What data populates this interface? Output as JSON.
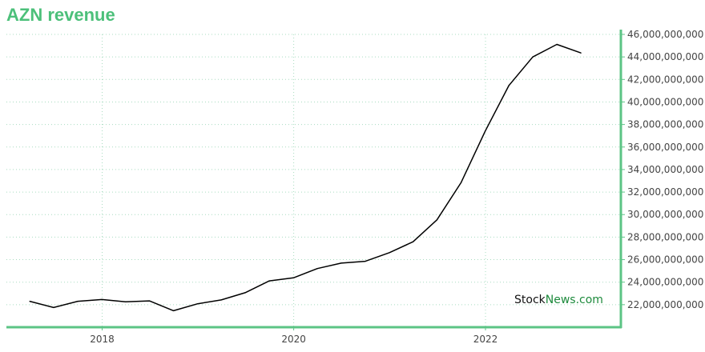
{
  "chart_data": {
    "type": "line",
    "title": "AZN revenue",
    "xlabel": "",
    "ylabel": "",
    "x": [
      "2017-03-31",
      "2017-06-30",
      "2017-09-30",
      "2017-12-31",
      "2018-03-31",
      "2018-06-30",
      "2018-09-30",
      "2018-12-31",
      "2019-03-31",
      "2019-06-30",
      "2019-09-30",
      "2019-12-31",
      "2020-03-31",
      "2020-06-30",
      "2020-09-30",
      "2020-12-31",
      "2021-03-31",
      "2021-06-30",
      "2021-09-30",
      "2021-12-31",
      "2022-03-31",
      "2022-06-30",
      "2022-09-30",
      "2022-12-31"
    ],
    "series": [
      {
        "values": [
          22300000000,
          21750000000,
          22300000000,
          22460000000,
          22260000000,
          22340000000,
          21460000000,
          22080000000,
          22420000000,
          23060000000,
          24110000000,
          24380000000,
          25210000000,
          25690000000,
          25850000000,
          26620000000,
          27590000000,
          29530000000,
          32850000000,
          37420000000,
          41460000000,
          44000000000,
          45110000000,
          44350000000
        ]
      }
    ],
    "xlim": [
      "2017-01-01",
      "2023-06-01"
    ],
    "ylim": [
      20000000000,
      46000000000
    ],
    "x_ticks": [
      "2018",
      "2020",
      "2022"
    ],
    "y_ticks": [
      "22,000,000,000",
      "24,000,000,000",
      "26,000,000,000",
      "28,000,000,000",
      "30,000,000,000",
      "32,000,000,000",
      "34,000,000,000",
      "36,000,000,000",
      "38,000,000,000",
      "40,000,000,000",
      "42,000,000,000",
      "44,000,000,000",
      "46,000,000,000"
    ],
    "grid": true,
    "y_axis_side": "right",
    "colors": {
      "line": "#000000",
      "axis": "#5cc485",
      "grid": "#a8dcc0",
      "title": "#4cc07a"
    }
  },
  "watermark": {
    "part1": "Stock",
    "part2": "News",
    "part3": ".com",
    "color1": "#111111",
    "color2": "#1d8a3c"
  }
}
